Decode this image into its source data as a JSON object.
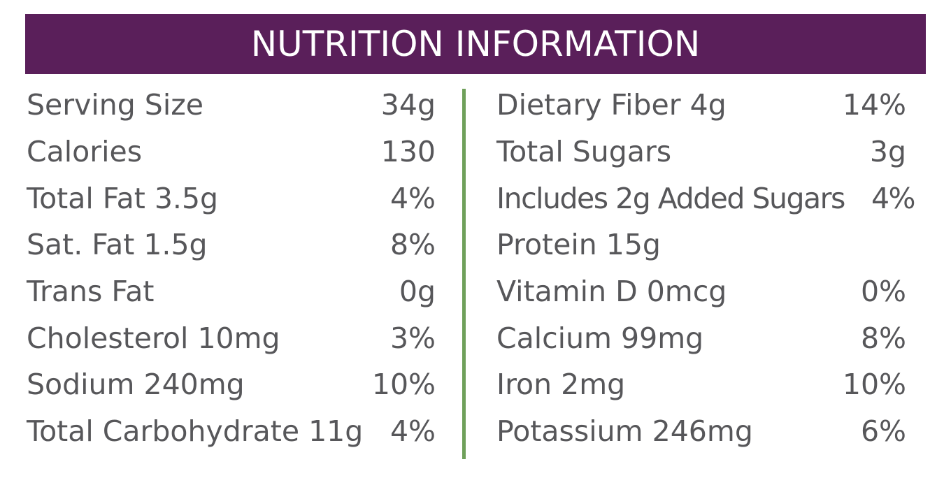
{
  "title": "NUTRITION INFORMATION",
  "colors": {
    "header_bg": "#5a1f5a",
    "divider": "#6fa05a",
    "text": "#57575a"
  },
  "left": [
    {
      "label": "Serving Size",
      "value": "34g"
    },
    {
      "label": "Calories",
      "value": "130"
    },
    {
      "label": "Total Fat 3.5g",
      "value": "4%"
    },
    {
      "label": "Sat. Fat 1.5g",
      "value": "8%"
    },
    {
      "label": "Trans Fat",
      "value": "0g"
    },
    {
      "label": "Cholesterol 10mg",
      "value": "3%"
    },
    {
      "label": "Sodium 240mg",
      "value": "10%"
    },
    {
      "label": "Total Carbohydrate 11g",
      "value": "4%"
    }
  ],
  "right": [
    {
      "label": "Dietary Fiber 4g",
      "value": "14%"
    },
    {
      "label": "Total Sugars",
      "value": "3g"
    },
    {
      "label": "Includes 2g Added Sugars",
      "value": "4%"
    },
    {
      "label": "Protein 15g",
      "value": ""
    },
    {
      "label": "Vitamin D 0mcg",
      "value": "0%"
    },
    {
      "label": "Calcium 99mg",
      "value": "8%"
    },
    {
      "label": "Iron 2mg",
      "value": "10%"
    },
    {
      "label": "Potassium 246mg",
      "value": "6%"
    }
  ]
}
